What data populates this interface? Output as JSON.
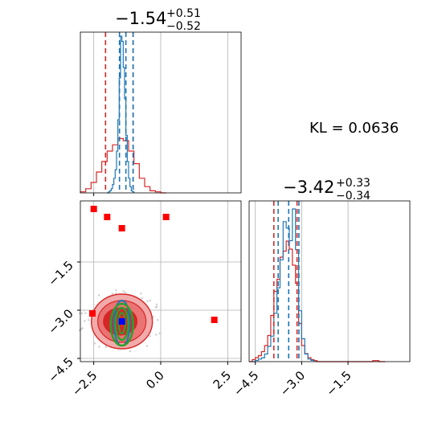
{
  "chart_data": {
    "type": "corner-plot",
    "kl_label": "KL = 0.0636",
    "colors": {
      "series_a": "#1f77b4",
      "series_b": "#d62728",
      "truth_marker": "#0000ff",
      "outlier_marker": "#ff0000",
      "contour_green": "#2ca02c",
      "grid": "#b0b0b0"
    },
    "params": [
      {
        "title_main": "−1.54",
        "title_sup": "+0.51",
        "title_sub": "−0.52",
        "range": [
          -3.0,
          3.0
        ],
        "series_a_dashes": [
          -1.54,
          -1.3,
          -1.03
        ],
        "series_b_dashes": [
          -2.06,
          -1.54,
          -1.03
        ]
      },
      {
        "title_main": "−3.42",
        "title_sup": "+0.33",
        "title_sub": "−0.34",
        "range": [
          -4.7,
          0.5
        ],
        "series_a_dashes": [
          -3.76,
          -3.42,
          -3.09
        ],
        "series_b_dashes": [
          -3.9,
          -3.42,
          -3.15
        ]
      }
    ],
    "x_ticks_param1": [
      "−2.5",
      "0.0",
      "2.5"
    ],
    "x_ticks_param2": [
      "−4.5",
      "−3.0",
      "−1.5"
    ],
    "y_ticks_param2": [
      "−1.5",
      "−3.0",
      "−4.5"
    ],
    "hist1_a": {
      "bins": [
        -2.0,
        -1.95,
        -1.9,
        -1.85,
        -1.8,
        -1.75,
        -1.7,
        -1.65,
        -1.6,
        -1.55,
        -1.5,
        -1.45,
        -1.4,
        -1.35,
        -1.3,
        -1.25,
        -1.2,
        -1.15,
        -1.1,
        -1.05,
        -1.0
      ],
      "counts": [
        0,
        1,
        2,
        4,
        8,
        14,
        22,
        40,
        70,
        110,
        150,
        145,
        120,
        90,
        55,
        30,
        14,
        6,
        2,
        1
      ]
    },
    "hist1_b": {
      "bins": [
        -3.0,
        -2.8,
        -2.6,
        -2.4,
        -2.2,
        -2.0,
        -1.8,
        -1.6,
        -1.4,
        -1.2,
        -1.0,
        -0.8,
        -0.6,
        -0.4,
        -0.2,
        0.0,
        0.2
      ],
      "counts": [
        1,
        4,
        10,
        20,
        30,
        40,
        46,
        52,
        50,
        40,
        28,
        14,
        6,
        2,
        1,
        0
      ]
    },
    "hist2_a": {
      "bins": [
        -4.6,
        -4.5,
        -4.4,
        -4.3,
        -4.2,
        -4.1,
        -4.0,
        -3.9,
        -3.8,
        -3.7,
        -3.6,
        -3.5,
        -3.4,
        -3.3,
        -3.2,
        -3.1,
        -3.0,
        -2.9,
        -2.8,
        -2.7,
        -2.6
      ],
      "counts": [
        0,
        1,
        2,
        3,
        6,
        12,
        20,
        38,
        58,
        80,
        110,
        105,
        95,
        120,
        88,
        40,
        18,
        6,
        2,
        1
      ]
    },
    "hist2_b": {
      "bins": [
        -4.7,
        -4.6,
        -4.5,
        -4.4,
        -4.3,
        -4.2,
        -4.1,
        -4.0,
        -3.9,
        -3.8,
        -3.7,
        -3.6,
        -3.5,
        -3.4,
        -3.3,
        -3.2,
        -3.1,
        -3.0,
        -2.9,
        -2.8,
        -2.7,
        -2.6,
        -2.5,
        -2.4,
        -0.7,
        -0.6,
        -0.5,
        -0.4,
        -0.3
      ],
      "counts": [
        0,
        2,
        4,
        6,
        10,
        16,
        26,
        46,
        70,
        82,
        104,
        110,
        120,
        112,
        96,
        78,
        38,
        16,
        8,
        4,
        2,
        1,
        0,
        0,
        1,
        1,
        0,
        0
      ]
    },
    "outliers": [
      {
        "x": -2.5,
        "y": 0.15
      },
      {
        "x": -2.0,
        "y": -0.1
      },
      {
        "x": 0.2,
        "y": -0.1
      },
      {
        "x": -1.45,
        "y": -0.45
      },
      {
        "x": -2.55,
        "y": -3.1
      },
      {
        "x": 2.0,
        "y": -3.3
      }
    ],
    "truth": {
      "x": -1.45,
      "y": -3.35
    }
  }
}
